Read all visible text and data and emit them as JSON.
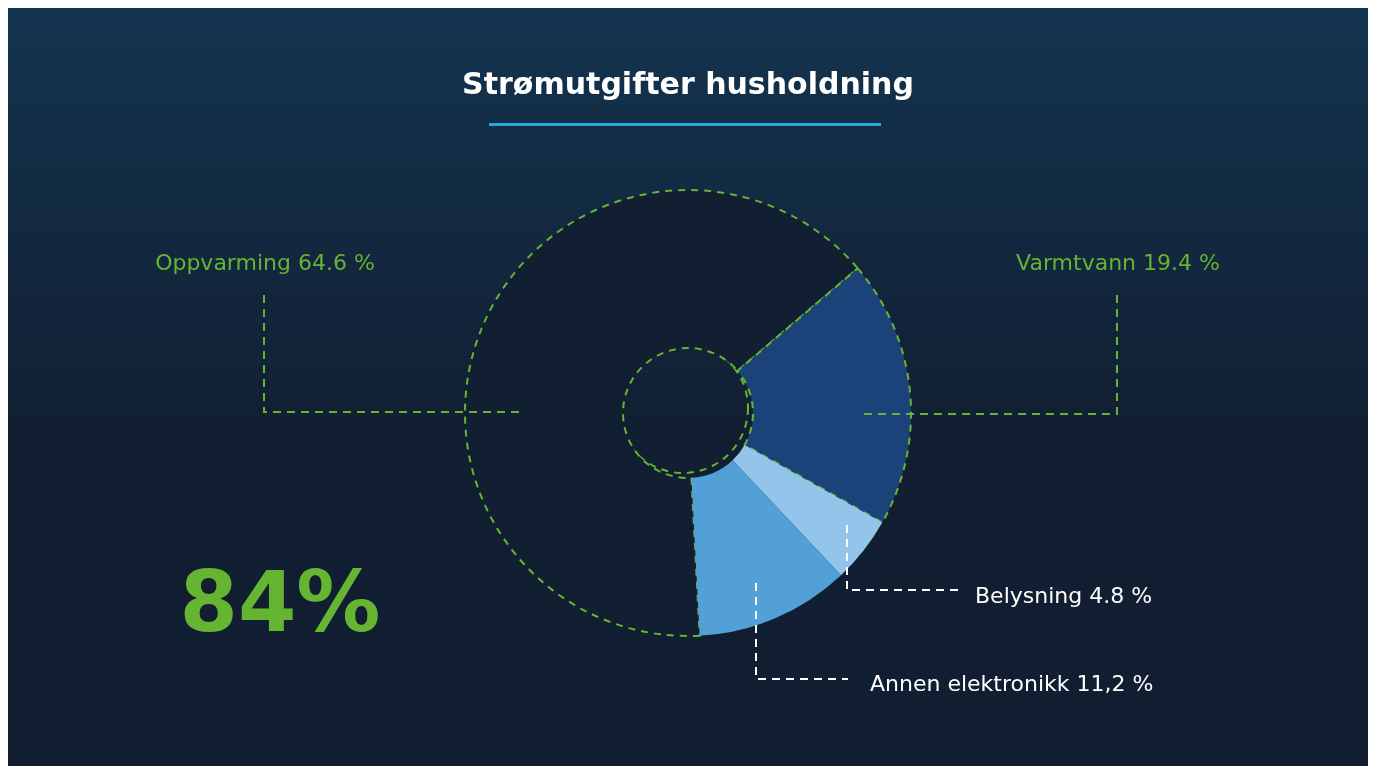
{
  "chart_data": {
    "type": "donut",
    "title": "Strømutgifter husholdning",
    "categories": [
      "Oppvarming",
      "Varmtvann",
      "Belysning",
      "Annen elektronikk"
    ],
    "values": [
      64.6,
      19.4,
      4.8,
      11.2
    ],
    "value_labels": [
      "64.6 %",
      "19.4 %",
      "4.8 %",
      "11,2 %"
    ],
    "colors": [
      "#121f33",
      "#1b4279",
      "#93c5ea",
      "#52a0d7"
    ],
    "annotations": [
      "84%"
    ],
    "legend": false
  }
}
